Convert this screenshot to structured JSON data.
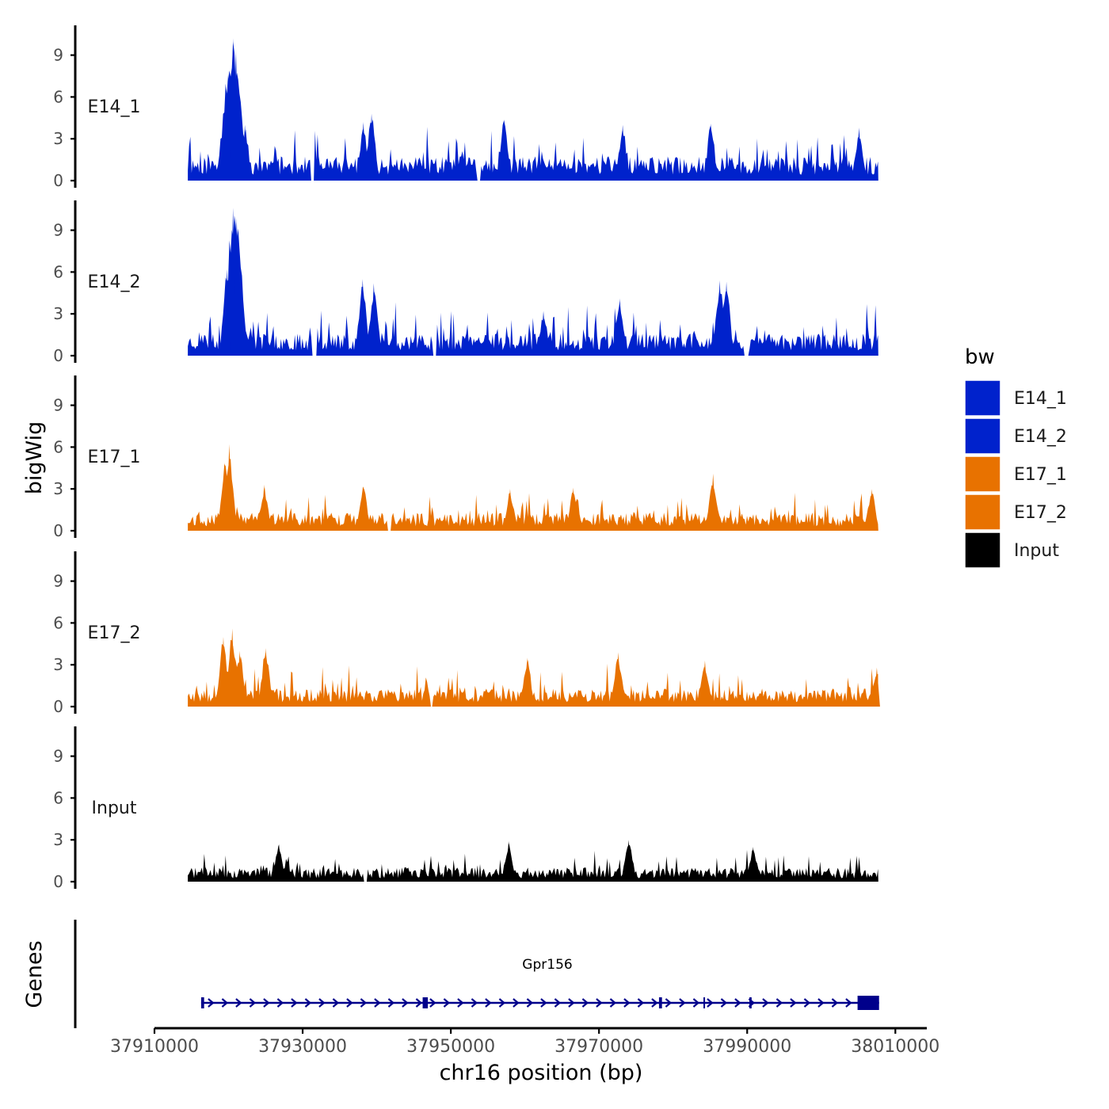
{
  "chart_data": {
    "type": "area",
    "chromosome": "chr16",
    "xlabel": "chr16 position (bp)",
    "ylabel": "bigWig",
    "genes_label": "Genes",
    "xlim": [
      37910000,
      38012000
    ],
    "x_ticks": [
      37910000,
      37930000,
      37950000,
      37970000,
      37990000,
      38010000
    ],
    "x_tick_labels": [
      "37910000",
      "37930000",
      "37950000",
      "37970000",
      "37990000",
      "38010000"
    ],
    "ylim": [
      0,
      11
    ],
    "y_ticks": [
      0,
      3,
      6,
      9
    ],
    "y_tick_labels": [
      "0",
      "3",
      "6",
      "9"
    ],
    "data_range": [
      37914500,
      38007700
    ],
    "legend": {
      "title": "bw",
      "entries": [
        {
          "label": "E14_1",
          "color": "#0022CC"
        },
        {
          "label": "E14_2",
          "color": "#0022CC"
        },
        {
          "label": "E17_1",
          "color": "#E87200"
        },
        {
          "label": "E17_2",
          "color": "#E87200"
        },
        {
          "label": "Input",
          "color": "#000000"
        }
      ]
    },
    "series": [
      {
        "name": "E14_1",
        "color": "#0022CC",
        "label": "E14_1",
        "baseline": 1.2,
        "noise": 1.6,
        "seed": 11,
        "peaks": [
          {
            "x": 37919900,
            "y": 7.6
          },
          {
            "x": 37920600,
            "y": 10.2
          },
          {
            "x": 37921000,
            "y": 9.3
          },
          {
            "x": 37922200,
            "y": 4.0
          },
          {
            "x": 37939300,
            "y": 4.8
          },
          {
            "x": 37938200,
            "y": 4.2
          },
          {
            "x": 37957200,
            "y": 4.4
          },
          {
            "x": 37973200,
            "y": 4.0
          },
          {
            "x": 37985100,
            "y": 4.1
          },
          {
            "x": 38005100,
            "y": 3.8
          }
        ],
        "gaps": [
          [
            37931000,
            37931600
          ],
          [
            37953500,
            37954100
          ]
        ]
      },
      {
        "name": "E14_2",
        "color": "#0022CC",
        "label": "E14_2",
        "baseline": 1.1,
        "noise": 1.7,
        "seed": 23,
        "peaks": [
          {
            "x": 37919800,
            "y": 6.2
          },
          {
            "x": 37920600,
            "y": 10.6
          },
          {
            "x": 37921100,
            "y": 9.9
          },
          {
            "x": 37938100,
            "y": 5.5
          },
          {
            "x": 37939600,
            "y": 5.2
          },
          {
            "x": 37962500,
            "y": 3.2
          },
          {
            "x": 37972800,
            "y": 4.1
          },
          {
            "x": 37986300,
            "y": 5.4
          },
          {
            "x": 37987200,
            "y": 5.3
          }
        ],
        "gaps": [
          [
            37931200,
            37932000
          ],
          [
            37947500,
            37948100
          ],
          [
            37989500,
            37990200
          ]
        ]
      },
      {
        "name": "E17_1",
        "color": "#E87200",
        "label": "E17_1",
        "baseline": 0.9,
        "noise": 1.2,
        "seed": 37,
        "peaks": [
          {
            "x": 37920100,
            "y": 6.2
          },
          {
            "x": 37919500,
            "y": 4.9
          },
          {
            "x": 37924800,
            "y": 3.3
          },
          {
            "x": 37938200,
            "y": 3.2
          },
          {
            "x": 37958000,
            "y": 3.0
          },
          {
            "x": 37966500,
            "y": 3.1
          },
          {
            "x": 37985400,
            "y": 4.1
          },
          {
            "x": 38006800,
            "y": 3.0
          }
        ],
        "gaps": [
          [
            37941500,
            37941900
          ]
        ]
      },
      {
        "name": "E17_2",
        "color": "#E87200",
        "label": "E17_2",
        "baseline": 0.9,
        "noise": 1.3,
        "seed": 53,
        "peaks": [
          {
            "x": 37919300,
            "y": 5.0
          },
          {
            "x": 37920500,
            "y": 5.6
          },
          {
            "x": 37921500,
            "y": 4.0
          },
          {
            "x": 37925000,
            "y": 4.2
          },
          {
            "x": 37960300,
            "y": 3.5
          },
          {
            "x": 37972600,
            "y": 3.9
          },
          {
            "x": 37984300,
            "y": 3.3
          },
          {
            "x": 38007500,
            "y": 2.8
          }
        ],
        "gaps": [
          [
            37947200,
            37947600
          ]
        ]
      },
      {
        "name": "Input",
        "color": "#000000",
        "label": "Input",
        "baseline": 0.7,
        "noise": 1.0,
        "seed": 71,
        "peaks": [
          {
            "x": 37926800,
            "y": 2.7
          },
          {
            "x": 37957800,
            "y": 2.9
          },
          {
            "x": 37974000,
            "y": 3.0
          },
          {
            "x": 37990800,
            "y": 2.5
          }
        ],
        "gaps": [
          [
            37938300,
            37938800
          ]
        ]
      }
    ],
    "gene": {
      "name": "Gpr156",
      "color": "#00008B",
      "strand": "+",
      "start": 37916300,
      "end": 38007800,
      "exons": [
        {
          "start": 37916300,
          "end": 37916700
        },
        {
          "start": 37946200,
          "end": 37946900
        },
        {
          "start": 37978100,
          "end": 37978500
        },
        {
          "start": 37984100,
          "end": 37984300
        },
        {
          "start": 37990300,
          "end": 37990600
        },
        {
          "start": 38004900,
          "end": 38007800
        }
      ]
    }
  }
}
